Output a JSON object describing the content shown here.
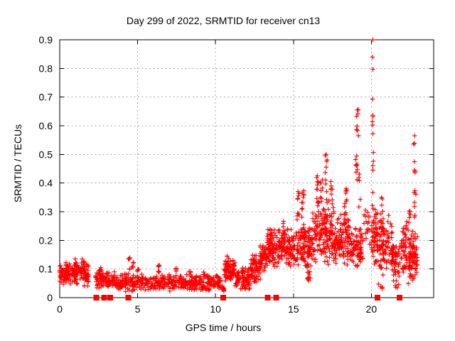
{
  "window": {
    "background": "#ffffff"
  },
  "chart_data": {
    "type": "scatter",
    "title": "Day 299 of 2022, SRMTID for receiver cn13",
    "xlabel": "GPS time / hours",
    "ylabel": "SRMTID / TECUs",
    "xlim": [
      0,
      24
    ],
    "ylim": [
      0,
      0.9
    ],
    "xticks": [
      0,
      5,
      10,
      15,
      20
    ],
    "xtick_labels": [
      "0",
      "5",
      "10",
      "15",
      "20"
    ],
    "yticks": [
      0,
      0.1,
      0.2,
      0.3,
      0.4,
      0.5,
      0.6,
      0.7,
      0.8,
      0.9
    ],
    "ytick_labels": [
      "0",
      "0.1",
      "0.2",
      "0.3",
      "0.4",
      "0.5",
      "0.6",
      "0.7",
      "0.8",
      "0.9"
    ],
    "grid": true,
    "legend": "none",
    "marker": {
      "shape": "plus",
      "color": "#ff0000",
      "size": 7
    },
    "grid_color": "#a6a6a6",
    "border_color": "#000000",
    "seed": 77,
    "series_name": "SRMTID",
    "segments": [
      {
        "x0": 0.0,
        "x1": 1.85,
        "n": 180,
        "ylo": 0.035,
        "yhi": 0.125
      },
      {
        "x0": 2.3,
        "x1": 3.5,
        "n": 95,
        "ylo": 0.025,
        "yhi": 0.095
      },
      {
        "x0": 3.5,
        "x1": 4.9,
        "n": 95,
        "ylo": 0.02,
        "yhi": 0.085
      },
      {
        "x0": 4.9,
        "x1": 10.3,
        "n": 340,
        "ylo": 0.022,
        "yhi": 0.085
      },
      {
        "x0": 10.3,
        "x1": 10.55,
        "n": 12,
        "ylo": 0.015,
        "yhi": 0.05
      },
      {
        "x0": 10.55,
        "x1": 11.25,
        "n": 75,
        "ylo": 0.055,
        "yhi": 0.135
      },
      {
        "x0": 11.25,
        "x1": 12.25,
        "n": 90,
        "ylo": 0.025,
        "yhi": 0.105
      },
      {
        "x0": 12.25,
        "x1": 12.85,
        "n": 60,
        "ylo": 0.05,
        "yhi": 0.16
      },
      {
        "x0": 12.85,
        "x1": 13.3,
        "n": 55,
        "ylo": 0.08,
        "yhi": 0.2
      },
      {
        "x0": 13.3,
        "x1": 14.85,
        "n": 160,
        "ylo": 0.1,
        "yhi": 0.25
      },
      {
        "x0": 14.85,
        "x1": 16.2,
        "n": 140,
        "ylo": 0.1,
        "yhi": 0.26
      },
      {
        "x0": 16.2,
        "x1": 17.65,
        "n": 175,
        "ylo": 0.1,
        "yhi": 0.35
      },
      {
        "x0": 17.65,
        "x1": 18.05,
        "n": 45,
        "ylo": 0.1,
        "yhi": 0.28
      },
      {
        "x0": 18.05,
        "x1": 18.65,
        "n": 70,
        "ylo": 0.1,
        "yhi": 0.33
      },
      {
        "x0": 18.65,
        "x1": 19.45,
        "n": 80,
        "ylo": 0.1,
        "yhi": 0.26
      },
      {
        "x0": 19.5,
        "x1": 19.95,
        "n": 18,
        "ylo": 0.15,
        "yhi": 0.33
      },
      {
        "x0": 20.0,
        "x1": 20.45,
        "n": 65,
        "ylo": 0.09,
        "yhi": 0.33
      },
      {
        "x0": 20.5,
        "x1": 21.15,
        "n": 70,
        "ylo": 0.07,
        "yhi": 0.3
      },
      {
        "x0": 21.2,
        "x1": 21.85,
        "n": 60,
        "ylo": 0.05,
        "yhi": 0.22
      },
      {
        "x0": 21.9,
        "x1": 22.3,
        "n": 50,
        "ylo": 0.07,
        "yhi": 0.28
      },
      {
        "x0": 22.35,
        "x1": 22.95,
        "n": 85,
        "ylo": 0.04,
        "yhi": 0.25
      }
    ],
    "spikes": [
      {
        "x": 1.05,
        "n": 8,
        "ylo": 0.1,
        "yhi": 0.145
      },
      {
        "x": 1.5,
        "n": 6,
        "ylo": 0.1,
        "yhi": 0.14
      },
      {
        "x": 2.6,
        "n": 5,
        "ylo": 0.09,
        "yhi": 0.115
      },
      {
        "x": 4.45,
        "n": 6,
        "ylo": 0.09,
        "yhi": 0.15
      },
      {
        "x": 4.7,
        "n": 5,
        "ylo": 0.09,
        "yhi": 0.13
      },
      {
        "x": 5.0,
        "n": 4,
        "ylo": 0.085,
        "yhi": 0.105
      },
      {
        "x": 6.35,
        "n": 6,
        "ylo": 0.085,
        "yhi": 0.12
      },
      {
        "x": 7.5,
        "n": 4,
        "ylo": 0.08,
        "yhi": 0.105
      },
      {
        "x": 8.35,
        "n": 4,
        "ylo": 0.08,
        "yhi": 0.1
      },
      {
        "x": 9.3,
        "n": 4,
        "ylo": 0.08,
        "yhi": 0.095
      },
      {
        "x": 10.8,
        "n": 8,
        "ylo": 0.1,
        "yhi": 0.148
      },
      {
        "x": 13.55,
        "n": 8,
        "ylo": 0.17,
        "yhi": 0.245
      },
      {
        "x": 14.35,
        "n": 8,
        "ylo": 0.2,
        "yhi": 0.27
      },
      {
        "x": 15.3,
        "n": 10,
        "ylo": 0.25,
        "yhi": 0.385
      },
      {
        "x": 15.6,
        "n": 10,
        "ylo": 0.26,
        "yhi": 0.4
      },
      {
        "x": 15.95,
        "n": 10,
        "ylo": 0.05,
        "yhi": 0.1,
        "w": 0.25
      },
      {
        "x": 16.55,
        "n": 10,
        "ylo": 0.32,
        "yhi": 0.44
      },
      {
        "x": 16.8,
        "n": 8,
        "ylo": 0.33,
        "yhi": 0.43
      },
      {
        "x": 17.1,
        "n": 10,
        "ylo": 0.33,
        "yhi": 0.5
      },
      {
        "x": 17.45,
        "n": 8,
        "ylo": 0.3,
        "yhi": 0.42
      },
      {
        "x": 18.35,
        "n": 8,
        "ylo": 0.28,
        "yhi": 0.4
      },
      {
        "x": 19.05,
        "n": 8,
        "ylo": 0.4,
        "yhi": 0.52
      },
      {
        "x": 19.1,
        "n": 7,
        "ylo": 0.55,
        "yhi": 0.66
      },
      {
        "x": 19.25,
        "n": 5,
        "ylo": 0.28,
        "yhi": 0.44
      },
      {
        "x": 20.1,
        "n": 7,
        "ylo": 0.6,
        "yhi": 0.9,
        "w": 0.08
      },
      {
        "x": 20.12,
        "n": 6,
        "ylo": 0.35,
        "yhi": 0.58,
        "w": 0.08
      },
      {
        "x": 20.55,
        "n": 4,
        "ylo": 0.03,
        "yhi": 0.05,
        "w": 0.3
      },
      {
        "x": 20.7,
        "n": 6,
        "ylo": 0.26,
        "yhi": 0.35
      },
      {
        "x": 21.3,
        "n": 5,
        "ylo": 0.2,
        "yhi": 0.28
      },
      {
        "x": 21.6,
        "n": 4,
        "ylo": 0.025,
        "yhi": 0.05,
        "w": 0.4
      },
      {
        "x": 22.45,
        "n": 6,
        "ylo": 0.26,
        "yhi": 0.33
      },
      {
        "x": 22.8,
        "n": 8,
        "ylo": 0.28,
        "yhi": 0.38
      },
      {
        "x": 22.78,
        "n": 6,
        "ylo": 0.42,
        "yhi": 0.57
      }
    ],
    "extra_points": [
      [
        20.1,
        0.9
      ],
      [
        17.1,
        0.5
      ],
      [
        19.1,
        0.655
      ],
      [
        22.78,
        0.565
      ],
      [
        0.02,
        0.11
      ],
      [
        0.02,
        0.075
      ]
    ],
    "axis_marker": {
      "shape": "filled-square",
      "color": "#ff0000",
      "size": 8,
      "y": 0,
      "x": [
        2.35,
        2.85,
        3.25,
        4.4,
        10.5,
        13.35,
        13.9,
        20.4,
        21.8
      ]
    }
  }
}
